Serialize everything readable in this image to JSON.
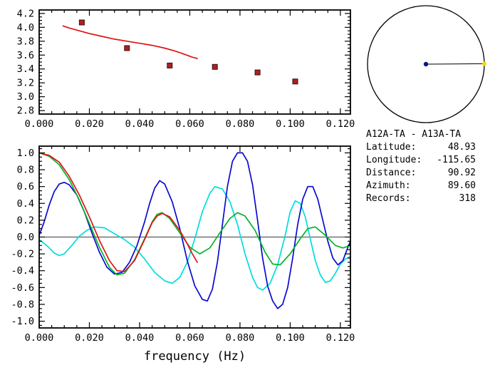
{
  "info_panel": {
    "title": "A12A-TA - A13A-TA",
    "rows": [
      {
        "label": "Latitude:",
        "value": "48.93"
      },
      {
        "label": "Longitude:",
        "value": "-115.65"
      },
      {
        "label": "Distance:",
        "value": "90.92"
      },
      {
        "label": "Azimuth:",
        "value": "89.60"
      },
      {
        "label": "Records:",
        "value": "318"
      }
    ]
  },
  "azimuth_dial": {
    "azimuth_deg": 89.6,
    "circle_color": "#000000",
    "center_dot_color": "#001a80",
    "marker_dot_color": "#ffd400"
  },
  "chart_data": [
    {
      "type": "line",
      "name": "dispersion-plot",
      "title": "",
      "xlabel": "",
      "ylabel": "",
      "xlim": [
        0,
        0.124
      ],
      "ylim": [
        2.75,
        4.25
      ],
      "grid": false,
      "legend": null,
      "xticks": {
        "values": [
          0.0,
          0.02,
          0.04,
          0.06,
          0.08,
          0.1,
          0.12
        ],
        "labels": [
          "0.000",
          "0.020",
          "0.040",
          "0.060",
          "0.080",
          "0.100",
          "0.120"
        ],
        "minor_step": 0.005
      },
      "yticks": {
        "values": [
          2.8,
          3.0,
          3.2,
          3.4,
          3.6,
          3.8,
          4.0,
          4.2
        ],
        "labels": [
          "2.8",
          "3.0",
          "3.2",
          "3.4",
          "3.6",
          "3.8",
          "4.0",
          "4.2"
        ],
        "minor_step": 0.05
      },
      "series": [
        {
          "name": "model-dispersion-curve",
          "color": "#dd1414",
          "points": [
            [
              0.0095,
              4.02
            ],
            [
              0.012,
              3.99
            ],
            [
              0.016,
              3.95
            ],
            [
              0.02,
              3.91
            ],
            [
              0.025,
              3.87
            ],
            [
              0.03,
              3.83
            ],
            [
              0.035,
              3.8
            ],
            [
              0.04,
              3.77
            ],
            [
              0.045,
              3.74
            ],
            [
              0.05,
              3.7
            ],
            [
              0.054,
              3.66
            ],
            [
              0.058,
              3.61
            ],
            [
              0.061,
              3.57
            ],
            [
              0.063,
              3.55
            ]
          ]
        }
      ],
      "markers": {
        "name": "measured-velocity-points",
        "shape": "square",
        "color": "#aa2222",
        "edge": "#401010",
        "size": 7,
        "points": [
          [
            0.017,
            4.07
          ],
          [
            0.035,
            3.7
          ],
          [
            0.052,
            3.45
          ],
          [
            0.07,
            3.43
          ],
          [
            0.087,
            3.35
          ],
          [
            0.102,
            3.22
          ]
        ]
      }
    },
    {
      "type": "line",
      "name": "correlation-plot",
      "title": "",
      "xlabel": "frequency (Hz)",
      "ylabel": "",
      "xlim": [
        0,
        0.124
      ],
      "ylim": [
        -1.08,
        1.08
      ],
      "grid": false,
      "legend": null,
      "zero_line": true,
      "xticks": {
        "values": [
          0.0,
          0.02,
          0.04,
          0.06,
          0.08,
          0.1,
          0.12
        ],
        "labels": [
          "0.000",
          "0.020",
          "0.040",
          "0.060",
          "0.080",
          "0.100",
          "0.120"
        ],
        "minor_step": 0.005
      },
      "yticks": {
        "values": [
          -1.0,
          -0.8,
          -0.6,
          -0.4,
          -0.2,
          0.0,
          0.2,
          0.4,
          0.6,
          0.8,
          1.0
        ],
        "labels": [
          "-1.0",
          "-0.8",
          "-0.6",
          "-0.4",
          "-0.2",
          "0.0",
          "0.2",
          "0.4",
          "0.6",
          "0.8",
          "1.0"
        ],
        "minor_step": 0.05
      },
      "series": [
        {
          "name": "cyan-trace",
          "color": "#00dddd",
          "points": [
            [
              0,
              -0.03
            ],
            [
              0.003,
              -0.1
            ],
            [
              0.006,
              -0.19
            ],
            [
              0.008,
              -0.22
            ],
            [
              0.01,
              -0.2
            ],
            [
              0.013,
              -0.1
            ],
            [
              0.016,
              0.01
            ],
            [
              0.019,
              0.08
            ],
            [
              0.022,
              0.12
            ],
            [
              0.026,
              0.11
            ],
            [
              0.03,
              0.04
            ],
            [
              0.034,
              -0.03
            ],
            [
              0.038,
              -0.12
            ],
            [
              0.042,
              -0.26
            ],
            [
              0.046,
              -0.42
            ],
            [
              0.05,
              -0.52
            ],
            [
              0.053,
              -0.55
            ],
            [
              0.056,
              -0.48
            ],
            [
              0.059,
              -0.3
            ],
            [
              0.062,
              -0.02
            ],
            [
              0.065,
              0.3
            ],
            [
              0.068,
              0.52
            ],
            [
              0.07,
              0.6
            ],
            [
              0.073,
              0.57
            ],
            [
              0.076,
              0.42
            ],
            [
              0.079,
              0.15
            ],
            [
              0.082,
              -0.2
            ],
            [
              0.085,
              -0.48
            ],
            [
              0.087,
              -0.6
            ],
            [
              0.089,
              -0.63
            ],
            [
              0.092,
              -0.55
            ],
            [
              0.095,
              -0.33
            ],
            [
              0.098,
              0.02
            ],
            [
              0.1,
              0.3
            ],
            [
              0.102,
              0.43
            ],
            [
              0.104,
              0.4
            ],
            [
              0.106,
              0.24
            ],
            [
              0.108,
              -0.02
            ],
            [
              0.11,
              -0.28
            ],
            [
              0.112,
              -0.45
            ],
            [
              0.114,
              -0.54
            ],
            [
              0.116,
              -0.52
            ],
            [
              0.118,
              -0.43
            ],
            [
              0.12,
              -0.32
            ],
            [
              0.122,
              -0.26
            ],
            [
              0.124,
              -0.23
            ]
          ]
        },
        {
          "name": "blue-trace",
          "color": "#0a0ad0",
          "points": [
            [
              0,
              0.02
            ],
            [
              0.002,
              0.18
            ],
            [
              0.004,
              0.38
            ],
            [
              0.006,
              0.54
            ],
            [
              0.008,
              0.63
            ],
            [
              0.01,
              0.65
            ],
            [
              0.012,
              0.62
            ],
            [
              0.015,
              0.5
            ],
            [
              0.018,
              0.3
            ],
            [
              0.021,
              0.05
            ],
            [
              0.024,
              -0.18
            ],
            [
              0.027,
              -0.36
            ],
            [
              0.03,
              -0.44
            ],
            [
              0.033,
              -0.42
            ],
            [
              0.036,
              -0.3
            ],
            [
              0.039,
              -0.1
            ],
            [
              0.042,
              0.18
            ],
            [
              0.044,
              0.4
            ],
            [
              0.046,
              0.58
            ],
            [
              0.048,
              0.67
            ],
            [
              0.05,
              0.63
            ],
            [
              0.053,
              0.42
            ],
            [
              0.056,
              0.1
            ],
            [
              0.059,
              -0.28
            ],
            [
              0.062,
              -0.58
            ],
            [
              0.065,
              -0.74
            ],
            [
              0.067,
              -0.76
            ],
            [
              0.069,
              -0.62
            ],
            [
              0.071,
              -0.3
            ],
            [
              0.073,
              0.15
            ],
            [
              0.075,
              0.6
            ],
            [
              0.077,
              0.9
            ],
            [
              0.079,
              1.0
            ],
            [
              0.081,
              1.0
            ],
            [
              0.083,
              0.9
            ],
            [
              0.085,
              0.62
            ],
            [
              0.087,
              0.2
            ],
            [
              0.089,
              -0.25
            ],
            [
              0.091,
              -0.58
            ],
            [
              0.093,
              -0.76
            ],
            [
              0.095,
              -0.85
            ],
            [
              0.097,
              -0.8
            ],
            [
              0.099,
              -0.6
            ],
            [
              0.101,
              -0.25
            ],
            [
              0.103,
              0.15
            ],
            [
              0.105,
              0.45
            ],
            [
              0.107,
              0.6
            ],
            [
              0.109,
              0.6
            ],
            [
              0.111,
              0.45
            ],
            [
              0.113,
              0.2
            ],
            [
              0.115,
              -0.05
            ],
            [
              0.117,
              -0.25
            ],
            [
              0.119,
              -0.33
            ],
            [
              0.121,
              -0.28
            ],
            [
              0.123,
              -0.12
            ],
            [
              0.124,
              -0.05
            ]
          ]
        },
        {
          "name": "green-trace",
          "color": "#00b42a",
          "points": [
            [
              0,
              1.0
            ],
            [
              0.004,
              0.96
            ],
            [
              0.008,
              0.86
            ],
            [
              0.012,
              0.68
            ],
            [
              0.016,
              0.44
            ],
            [
              0.02,
              0.16
            ],
            [
              0.024,
              -0.12
            ],
            [
              0.028,
              -0.36
            ],
            [
              0.031,
              -0.45
            ],
            [
              0.034,
              -0.43
            ],
            [
              0.038,
              -0.27
            ],
            [
              0.042,
              -0.02
            ],
            [
              0.045,
              0.18
            ],
            [
              0.047,
              0.27
            ],
            [
              0.049,
              0.29
            ],
            [
              0.052,
              0.22
            ],
            [
              0.056,
              0.05
            ],
            [
              0.06,
              -0.12
            ],
            [
              0.064,
              -0.2
            ],
            [
              0.068,
              -0.13
            ],
            [
              0.072,
              0.05
            ],
            [
              0.076,
              0.22
            ],
            [
              0.079,
              0.29
            ],
            [
              0.082,
              0.25
            ],
            [
              0.086,
              0.08
            ],
            [
              0.09,
              -0.18
            ],
            [
              0.093,
              -0.32
            ],
            [
              0.096,
              -0.33
            ],
            [
              0.1,
              -0.2
            ],
            [
              0.104,
              -0.02
            ],
            [
              0.107,
              0.1
            ],
            [
              0.11,
              0.12
            ],
            [
              0.114,
              0.02
            ],
            [
              0.118,
              -0.1
            ],
            [
              0.121,
              -0.13
            ],
            [
              0.124,
              -0.1
            ]
          ]
        },
        {
          "name": "red-trace",
          "color": "#dd1414",
          "points": [
            [
              0,
              1.0
            ],
            [
              0.004,
              0.97
            ],
            [
              0.008,
              0.89
            ],
            [
              0.012,
              0.72
            ],
            [
              0.016,
              0.5
            ],
            [
              0.02,
              0.24
            ],
            [
              0.024,
              -0.04
            ],
            [
              0.028,
              -0.28
            ],
            [
              0.031,
              -0.4
            ],
            [
              0.034,
              -0.41
            ],
            [
              0.038,
              -0.28
            ],
            [
              0.042,
              -0.03
            ],
            [
              0.045,
              0.17
            ],
            [
              0.047,
              0.25
            ],
            [
              0.049,
              0.28
            ],
            [
              0.052,
              0.24
            ],
            [
              0.056,
              0.08
            ],
            [
              0.059,
              -0.08
            ],
            [
              0.061,
              -0.2
            ],
            [
              0.063,
              -0.3
            ]
          ]
        }
      ]
    }
  ]
}
